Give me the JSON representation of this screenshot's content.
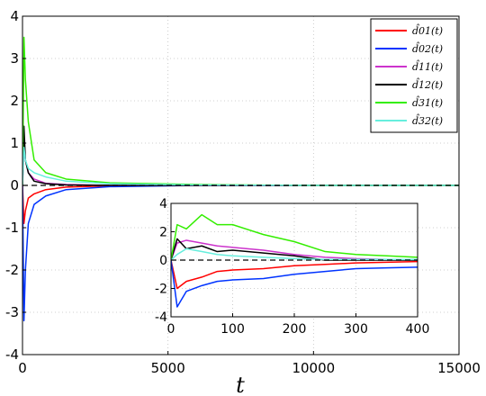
{
  "chart_data": [
    {
      "type": "line",
      "xlabel": "t",
      "ylabel": "",
      "xlim": [
        0,
        15000
      ],
      "ylim": [
        -4,
        4
      ],
      "xticks": [
        "0",
        "5000",
        "10000",
        "15000"
      ],
      "yticks": [
        "-4",
        "-3",
        "-2",
        "-1",
        "0",
        "1",
        "2",
        "3",
        "4"
      ],
      "grid": true,
      "legend_position": "top-right",
      "reference_line": {
        "y": 0,
        "style": "dashed",
        "color": "#000000"
      },
      "series": [
        {
          "name": "d̂01(t)",
          "color": "#ff0000",
          "x": [
            0,
            50,
            100,
            200,
            400,
            800,
            1500,
            3000,
            6000,
            10000,
            15000
          ],
          "y": [
            0,
            -0.9,
            -0.6,
            -0.3,
            -0.2,
            -0.1,
            -0.04,
            -0.01,
            0,
            0,
            0
          ]
        },
        {
          "name": "d̂02(t)",
          "color": "#0033ff",
          "x": [
            0,
            50,
            100,
            200,
            400,
            800,
            1500,
            3000,
            6000,
            10000,
            15000
          ],
          "y": [
            0,
            -3.2,
            -2.0,
            -0.9,
            -0.45,
            -0.25,
            -0.1,
            -0.03,
            0,
            0,
            0
          ]
        },
        {
          "name": "d̂11(t)",
          "color": "#cc33cc",
          "x": [
            0,
            50,
            100,
            200,
            400,
            800,
            1500,
            3000,
            6000,
            10000,
            15000
          ],
          "y": [
            0,
            1.0,
            0.6,
            0.3,
            0.15,
            0.05,
            0.02,
            0,
            0,
            0,
            0
          ]
        },
        {
          "name": "d̂12(t)",
          "color": "#000000",
          "x": [
            0,
            50,
            100,
            200,
            400,
            800,
            1500,
            3000,
            6000,
            10000,
            15000
          ],
          "y": [
            0,
            1.4,
            0.6,
            0.3,
            0.1,
            0.04,
            0.01,
            0,
            0,
            0,
            0
          ]
        },
        {
          "name": "d̂31(t)",
          "color": "#33ee00",
          "x": [
            0,
            50,
            100,
            200,
            400,
            800,
            1500,
            3000,
            6000,
            10000,
            15000
          ],
          "y": [
            0,
            3.5,
            2.5,
            1.5,
            0.6,
            0.3,
            0.15,
            0.06,
            0.02,
            0,
            0
          ]
        },
        {
          "name": "d̂32(t)",
          "color": "#66eedd",
          "x": [
            0,
            50,
            100,
            200,
            400,
            800,
            1500,
            3000,
            6000,
            10000,
            15000
          ],
          "y": [
            0,
            0.9,
            0.6,
            0.4,
            0.3,
            0.2,
            0.1,
            0.04,
            0.01,
            0,
            0
          ]
        }
      ]
    },
    {
      "type": "line",
      "xlabel": "",
      "ylabel": "",
      "xlim": [
        0,
        400
      ],
      "ylim": [
        -4,
        4
      ],
      "xticks": [
        "0",
        "100",
        "200",
        "300",
        "400"
      ],
      "yticks": [
        "-4",
        "-2",
        "0",
        "2",
        "4"
      ],
      "grid": true,
      "reference_line": {
        "y": 0,
        "style": "dashed",
        "color": "#000000"
      },
      "series": [
        {
          "name": "d̂01(t)",
          "color": "#ff0000",
          "x": [
            0,
            10,
            25,
            50,
            75,
            100,
            150,
            200,
            250,
            300,
            350,
            400
          ],
          "y": [
            0,
            -2.0,
            -1.5,
            -1.2,
            -0.8,
            -0.7,
            -0.6,
            -0.4,
            -0.3,
            -0.2,
            -0.15,
            -0.1
          ]
        },
        {
          "name": "d̂02(t)",
          "color": "#0033ff",
          "x": [
            0,
            10,
            25,
            50,
            75,
            100,
            150,
            200,
            250,
            300,
            350,
            400
          ],
          "y": [
            0,
            -3.3,
            -2.2,
            -1.8,
            -1.5,
            -1.4,
            -1.3,
            -1.0,
            -0.8,
            -0.6,
            -0.55,
            -0.5
          ]
        },
        {
          "name": "d̂11(t)",
          "color": "#cc33cc",
          "x": [
            0,
            10,
            25,
            50,
            75,
            100,
            150,
            200,
            250,
            300,
            350,
            400
          ],
          "y": [
            0,
            1.2,
            1.4,
            1.2,
            1.0,
            0.9,
            0.7,
            0.4,
            0.2,
            0.1,
            0.05,
            0.05
          ]
        },
        {
          "name": "d̂12(t)",
          "color": "#000000",
          "x": [
            0,
            10,
            25,
            50,
            75,
            100,
            150,
            200,
            250,
            300,
            350,
            400
          ],
          "y": [
            0,
            1.5,
            0.8,
            1.0,
            0.6,
            0.7,
            0.5,
            0.3,
            0.0,
            0.0,
            0.0,
            0.0
          ]
        },
        {
          "name": "d̂31(t)",
          "color": "#33ee00",
          "x": [
            0,
            10,
            25,
            50,
            75,
            100,
            150,
            200,
            250,
            300,
            350,
            400
          ],
          "y": [
            0,
            2.5,
            2.2,
            3.2,
            2.5,
            2.5,
            1.8,
            1.3,
            0.6,
            0.4,
            0.3,
            0.2
          ]
        },
        {
          "name": "d̂32(t)",
          "color": "#66eedd",
          "x": [
            0,
            10,
            25,
            50,
            75,
            100,
            150,
            200,
            250,
            300,
            350,
            400
          ],
          "y": [
            0,
            0.4,
            0.8,
            0.6,
            0.4,
            0.3,
            0.2,
            0.1,
            0.05,
            0.05,
            0.05,
            0.05
          ]
        }
      ]
    }
  ]
}
